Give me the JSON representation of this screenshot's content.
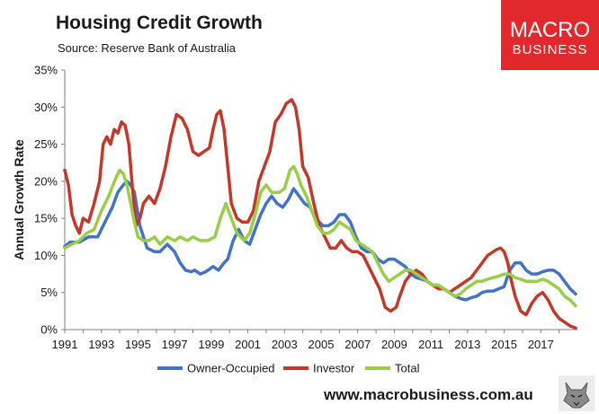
{
  "header": {
    "title": "Housing Credit Growth",
    "subtitle": "Source: Reserve Bank of Australia"
  },
  "logo": {
    "line1": "MACRO",
    "line2": "BUSINESS"
  },
  "footer": {
    "website": "www.macrobusiness.com.au"
  },
  "colors": {
    "owner_occupied": "#4472c4",
    "investor": "#c0392b",
    "total": "#9acd4a",
    "brand": "#e0282d"
  },
  "chart_data": {
    "type": "line",
    "title": "Housing Credit Growth",
    "ylabel": "Annual Growth Rate",
    "xlabel": "",
    "xlim": [
      1991,
      2019
    ],
    "ylim": [
      0,
      35
    ],
    "x_ticks": [
      1991,
      1993,
      1995,
      1997,
      1999,
      2001,
      2003,
      2005,
      2007,
      2009,
      2011,
      2013,
      2015,
      2017
    ],
    "x_tick_labels": [
      "1991",
      "1993",
      "1995",
      "1997",
      "1999",
      "2001",
      "2003",
      "2005",
      "2007",
      "2009",
      "2011",
      "2013",
      "2015",
      "2017"
    ],
    "y_ticks": [
      0,
      5,
      10,
      15,
      20,
      25,
      30,
      35
    ],
    "y_tick_labels": [
      "0%",
      "5%",
      "10%",
      "15%",
      "20%",
      "25%",
      "30%",
      "35%"
    ],
    "grid": false,
    "legend_position": "bottom",
    "series": [
      {
        "name": "Owner-Occupied",
        "color": "#4472c4",
        "x": [
          1991,
          1991.3,
          1991.8,
          1992.3,
          1992.8,
          1993.3,
          1993.6,
          1993.9,
          1994.2,
          1994.4,
          1994.6,
          1994.8,
          1995.1,
          1995.5,
          1995.9,
          1996.2,
          1996.6,
          1997.0,
          1997.3,
          1997.6,
          1997.9,
          1998.1,
          1998.4,
          1998.7,
          1999.1,
          1999.4,
          1999.7,
          1999.9,
          2000.2,
          2000.5,
          2000.8,
          2001.1,
          2001.4,
          2001.7,
          2002.0,
          2002.3,
          2002.6,
          2002.9,
          2003.2,
          2003.5,
          2003.8,
          2004.1,
          2004.4,
          2004.7,
          2005.1,
          2005.4,
          2005.7,
          2006.0,
          2006.3,
          2006.6,
          2006.9,
          2007.2,
          2007.5,
          2007.8,
          2008.1,
          2008.4,
          2008.7,
          2009.0,
          2009.3,
          2009.6,
          2009.9,
          2010.2,
          2010.5,
          2010.8,
          2011.1,
          2011.4,
          2011.7,
          2012.0,
          2012.3,
          2012.6,
          2012.9,
          2013.2,
          2013.5,
          2013.8,
          2014.1,
          2014.4,
          2014.7,
          2015.0,
          2015.3,
          2015.6,
          2015.9,
          2016.2,
          2016.5,
          2016.8,
          2017.1,
          2017.4,
          2017.7,
          2018.0,
          2018.3,
          2018.6,
          2018.9
        ],
        "values": [
          11.2,
          11.8,
          11.8,
          12.5,
          12.5,
          15.0,
          16.5,
          18.5,
          19.5,
          20.0,
          19.5,
          18.5,
          14.0,
          11.0,
          10.5,
          10.5,
          11.5,
          10.5,
          9.0,
          8.0,
          7.8,
          8.0,
          7.5,
          7.8,
          8.5,
          8.0,
          9.0,
          9.5,
          12.0,
          13.5,
          12.0,
          11.5,
          13.5,
          15.5,
          17.0,
          18.0,
          17.0,
          16.5,
          17.5,
          19.0,
          18.0,
          17.0,
          16.5,
          15.0,
          14.0,
          14.0,
          14.5,
          15.5,
          15.5,
          14.5,
          12.5,
          11.0,
          10.5,
          10.5,
          9.5,
          9.0,
          9.5,
          9.5,
          9.0,
          8.5,
          7.5,
          7.0,
          6.8,
          6.5,
          6.0,
          6.0,
          5.5,
          5.0,
          4.5,
          4.2,
          4.0,
          4.3,
          4.5,
          5.0,
          5.2,
          5.2,
          5.5,
          5.8,
          8.0,
          9.0,
          9.0,
          8.0,
          7.5,
          7.5,
          7.8,
          8.0,
          8.0,
          7.5,
          6.5,
          5.5,
          4.8
        ]
      },
      {
        "name": "Investor",
        "color": "#c0392b",
        "x": [
          1991,
          1991.2,
          1991.4,
          1991.6,
          1991.8,
          1992.0,
          1992.3,
          1992.6,
          1992.9,
          1993.1,
          1993.3,
          1993.5,
          1993.7,
          1993.9,
          1994.1,
          1994.3,
          1994.5,
          1994.7,
          1994.9,
          1995.1,
          1995.3,
          1995.6,
          1995.9,
          1996.2,
          1996.5,
          1996.8,
          1997.1,
          1997.4,
          1997.7,
          1998.0,
          1998.3,
          1998.6,
          1998.9,
          1999.1,
          1999.3,
          1999.5,
          1999.7,
          1999.9,
          2000.1,
          2000.4,
          2000.7,
          2001.0,
          2001.3,
          2001.6,
          2001.9,
          2002.2,
          2002.5,
          2002.8,
          2003.1,
          2003.4,
          2003.6,
          2003.8,
          2004.0,
          2004.3,
          2004.6,
          2004.9,
          2005.2,
          2005.5,
          2005.8,
          2006.1,
          2006.4,
          2006.7,
          2007.0,
          2007.3,
          2007.6,
          2007.9,
          2008.2,
          2008.5,
          2008.8,
          2009.1,
          2009.3,
          2009.6,
          2009.9,
          2010.2,
          2010.5,
          2010.8,
          2011.1,
          2011.4,
          2011.7,
          2012.0,
          2012.3,
          2012.6,
          2012.9,
          2013.2,
          2013.5,
          2013.8,
          2014.1,
          2014.4,
          2014.6,
          2014.8,
          2015.0,
          2015.2,
          2015.4,
          2015.6,
          2015.9,
          2016.2,
          2016.5,
          2016.8,
          2017.1,
          2017.4,
          2017.7,
          2018.0,
          2018.3,
          2018.6,
          2018.9
        ],
        "values": [
          21.5,
          19.5,
          15.5,
          14.0,
          13.0,
          15.0,
          14.5,
          17.0,
          20.0,
          25.0,
          26.0,
          25.0,
          27.0,
          26.5,
          28.0,
          27.5,
          25.0,
          19.0,
          14.0,
          15.0,
          17.0,
          18.0,
          17.0,
          19.0,
          22.0,
          26.0,
          29.0,
          28.5,
          27.0,
          24.0,
          23.5,
          24.0,
          24.5,
          27.0,
          29.0,
          29.5,
          27.0,
          22.0,
          17.0,
          15.0,
          14.5,
          14.5,
          16.0,
          20.0,
          22.0,
          24.0,
          28.0,
          29.0,
          30.5,
          31.0,
          30.0,
          27.0,
          22.0,
          20.5,
          17.0,
          14.0,
          12.5,
          11.0,
          11.0,
          12.0,
          11.0,
          10.5,
          10.5,
          10.0,
          8.5,
          7.0,
          5.5,
          3.0,
          2.5,
          3.0,
          4.5,
          6.5,
          7.5,
          8.0,
          7.5,
          6.5,
          6.0,
          5.5,
          5.5,
          5.0,
          5.5,
          6.0,
          6.5,
          7.0,
          8.0,
          9.0,
          10.0,
          10.5,
          10.8,
          11.0,
          10.5,
          9.0,
          6.5,
          4.5,
          2.5,
          2.0,
          3.5,
          4.5,
          5.0,
          4.0,
          2.5,
          1.5,
          1.0,
          0.5,
          0.2
        ]
      },
      {
        "name": "Total",
        "color": "#9acd4a",
        "x": [
          1991,
          1991.4,
          1991.8,
          1992.2,
          1992.6,
          1993.0,
          1993.4,
          1993.8,
          1994.0,
          1994.2,
          1994.4,
          1994.6,
          1994.8,
          1995.0,
          1995.3,
          1995.6,
          1995.9,
          1996.2,
          1996.6,
          1997.0,
          1997.3,
          1997.7,
          1998.0,
          1998.4,
          1998.8,
          1999.2,
          1999.5,
          1999.8,
          2000.1,
          2000.4,
          2000.8,
          2001.1,
          2001.4,
          2001.7,
          2002.0,
          2002.3,
          2002.7,
          2003.0,
          2003.3,
          2003.5,
          2003.7,
          2003.9,
          2004.2,
          2004.5,
          2004.8,
          2005.1,
          2005.4,
          2005.7,
          2006.0,
          2006.3,
          2006.6,
          2006.9,
          2007.2,
          2007.5,
          2007.8,
          2008.1,
          2008.4,
          2008.7,
          2009.0,
          2009.3,
          2009.6,
          2009.9,
          2010.2,
          2010.5,
          2010.8,
          2011.1,
          2011.4,
          2011.7,
          2012.0,
          2012.3,
          2012.6,
          2012.9,
          2013.2,
          2013.5,
          2013.8,
          2014.1,
          2014.4,
          2014.7,
          2015.0,
          2015.3,
          2015.6,
          2015.9,
          2016.2,
          2016.5,
          2016.8,
          2017.1,
          2017.4,
          2017.7,
          2018.0,
          2018.3,
          2018.6,
          2018.9
        ],
        "values": [
          11.0,
          11.5,
          12.0,
          13.0,
          13.5,
          16.0,
          18.0,
          20.5,
          21.5,
          21.0,
          19.5,
          17.0,
          14.5,
          12.5,
          12.0,
          12.0,
          12.5,
          11.5,
          12.5,
          12.0,
          12.5,
          12.0,
          12.5,
          12.0,
          12.0,
          12.5,
          15.0,
          17.0,
          15.0,
          13.0,
          12.0,
          13.0,
          15.5,
          18.5,
          19.5,
          18.5,
          18.5,
          19.0,
          21.5,
          22.0,
          21.0,
          19.5,
          18.0,
          16.0,
          14.0,
          13.0,
          13.0,
          13.5,
          14.5,
          14.0,
          13.5,
          12.0,
          11.5,
          11.0,
          10.5,
          9.0,
          7.5,
          6.5,
          7.0,
          7.5,
          8.0,
          8.0,
          7.5,
          7.0,
          6.5,
          6.0,
          6.0,
          5.5,
          5.0,
          4.5,
          4.8,
          5.5,
          6.0,
          6.5,
          6.5,
          6.8,
          7.0,
          7.2,
          7.5,
          7.5,
          7.0,
          6.8,
          6.5,
          6.5,
          6.5,
          6.8,
          6.5,
          6.0,
          5.5,
          4.5,
          4.0,
          3.2
        ]
      }
    ]
  }
}
